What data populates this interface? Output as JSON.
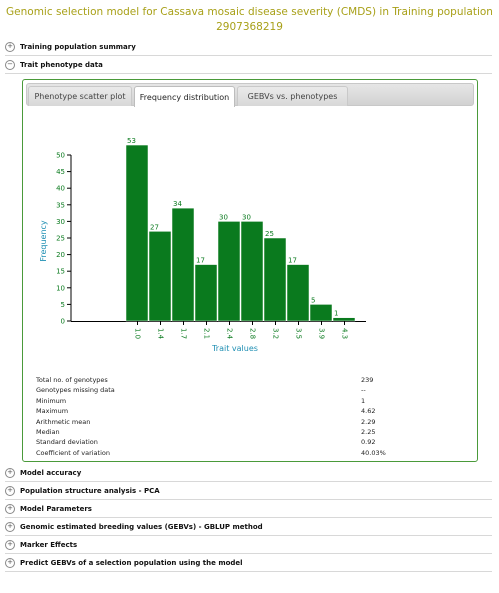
{
  "page": {
    "title_line1": "Genomic selection model for Cassava mosaic disease severity (CMDS) in Training population",
    "title_line2": "2907368219"
  },
  "sections": {
    "training_summary": "Training population summary",
    "trait_phenotype": "Trait phenotype data",
    "model_accuracy": "Model accuracy",
    "population_structure": "Population structure analysis - PCA",
    "model_parameters": "Model Parameters",
    "gebvs": "Genomic estimated breeding values (GEBVs) - GBLUP method",
    "marker_effects": "Marker Effects",
    "predict_gebvs": "Predict GEBVs of a selection population using the model"
  },
  "tabs": [
    {
      "label": "Phenotype scatter plot",
      "active": false
    },
    {
      "label": "Frequency distribution",
      "active": true
    },
    {
      "label": "GEBVs vs. phenotypes",
      "active": false
    }
  ],
  "chart_data": {
    "type": "bar",
    "categories": [
      "1.0",
      "1.4",
      "1.7",
      "2.1",
      "2.4",
      "2.8",
      "3.2",
      "3.5",
      "3.9",
      "4.3"
    ],
    "values": [
      53,
      27,
      34,
      17,
      30,
      30,
      25,
      17,
      5,
      1
    ],
    "xlabel": "Trait values",
    "ylabel": "Frequency",
    "ylim": [
      0,
      55
    ],
    "yticks": [
      0,
      5,
      10,
      15,
      20,
      25,
      30,
      35,
      40,
      45,
      50
    ],
    "bar_color": "#0a7a1e",
    "axis_label_color": "#1f8fb3",
    "grid": false
  },
  "stats": [
    {
      "label": "Total no. of genotypes",
      "value": "239"
    },
    {
      "label": "Genotypes missing data",
      "value": "--"
    },
    {
      "label": "Minimum",
      "value": "1"
    },
    {
      "label": "Maximum",
      "value": "4.62"
    },
    {
      "label": "Arithmetic mean",
      "value": "2.29"
    },
    {
      "label": "Median",
      "value": "2.25"
    },
    {
      "label": "Standard deviation",
      "value": "0.92"
    },
    {
      "label": "Coefficient of variation",
      "value": "40.03%"
    }
  ],
  "icons": {
    "expand": "plus-circle-icon",
    "collapse": "minus-circle-icon"
  },
  "colors": {
    "title": "#a8a018",
    "panel_border": "#4a9a3a"
  }
}
